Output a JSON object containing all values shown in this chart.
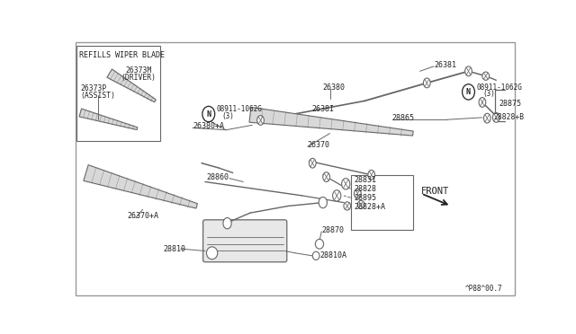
{
  "bg_color": "#ffffff",
  "line_color": "#666666",
  "dark_color": "#222222",
  "border_color": "#aaaaaa",
  "box_bg": "#f0f0ec",
  "parts_box_labels": [
    "28831",
    "28828",
    "28895",
    "28828+A"
  ],
  "watermark": "^P88^00.7"
}
